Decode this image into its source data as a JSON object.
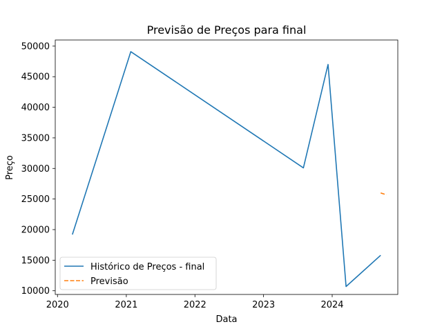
{
  "chart_data": {
    "type": "line",
    "title": "Previsão de Preços para final",
    "xlabel": "Data",
    "ylabel": "Preço",
    "x_ticks": [
      "2020",
      "2021",
      "2022",
      "2023",
      "2024"
    ],
    "y_ticks": [
      "10000",
      "15000",
      "20000",
      "25000",
      "30000",
      "35000",
      "40000",
      "45000",
      "50000"
    ],
    "xlim": [
      "2019-12-20",
      "2024-12-15"
    ],
    "ylim": [
      9400,
      51000
    ],
    "grid": false,
    "legend_position": "lower-left",
    "series": [
      {
        "name": "Histórico de Preços - final",
        "color": "#1f77b4",
        "style": "solid",
        "points": [
          {
            "x": "2020-03-20",
            "y": 19200
          },
          {
            "x": "2021-01-25",
            "y": 49100
          },
          {
            "x": "2023-08-01",
            "y": 30100
          },
          {
            "x": "2023-12-10",
            "y": 47000
          },
          {
            "x": "2024-03-15",
            "y": 10700
          },
          {
            "x": "2024-09-15",
            "y": 15800
          }
        ]
      },
      {
        "name": "Previsão",
        "color": "#ff7f0e",
        "style": "dashed",
        "points": [
          {
            "x": "2024-09-15",
            "y": 26000
          },
          {
            "x": "2024-10-15",
            "y": 25700
          }
        ]
      }
    ]
  }
}
